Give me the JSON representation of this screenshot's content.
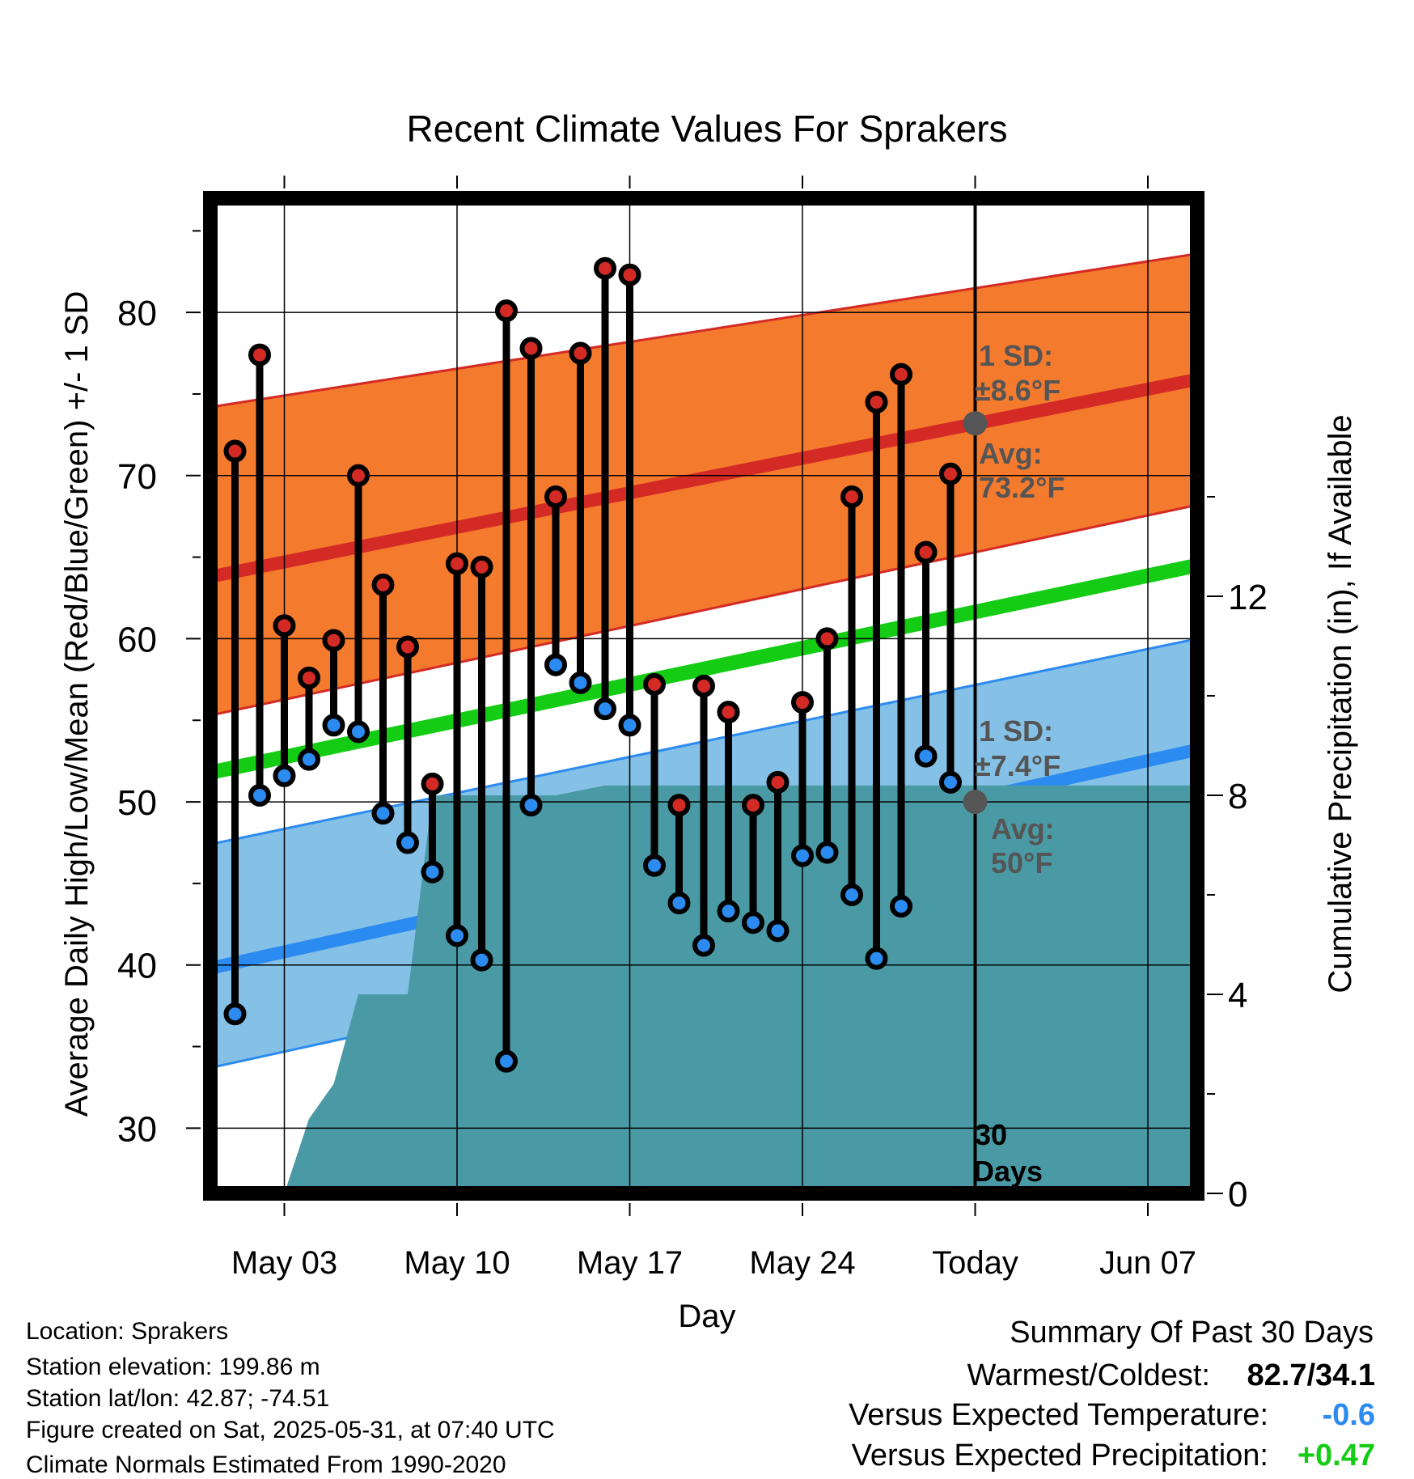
{
  "chart_data": {
    "type": "line",
    "title": "Recent Climate Values For Sprakers",
    "xlabel": "Day",
    "ylabel": "Average Daily High/Low/Mean (Red/Blue/Green) +/- 1 SD",
    "y2label": "Cumulative Precipitation (in), If Available",
    "ylim": [
      26,
      87
    ],
    "y2lim": [
      0,
      20
    ],
    "xlim": [
      -3.0,
      37.0
    ],
    "yticks": [
      "30",
      "40",
      "50",
      "60",
      "70",
      "80"
    ],
    "y2ticks": [
      "0",
      "4",
      "8",
      "12"
    ],
    "xticks": [
      {
        "day": 0,
        "label": "May 03"
      },
      {
        "day": 7,
        "label": "May 10"
      },
      {
        "day": 14,
        "label": "May 17"
      },
      {
        "day": 21,
        "label": "May 24"
      },
      {
        "day": 28,
        "label": "Today"
      },
      {
        "day": 35,
        "label": "Jun 07"
      }
    ],
    "grid": true,
    "days": [
      -2,
      -1,
      0,
      1,
      2,
      3,
      4,
      5,
      6,
      7,
      8,
      9,
      10,
      11,
      12,
      13,
      14,
      15,
      16,
      17,
      18,
      19,
      20,
      21,
      22,
      23,
      24,
      25,
      26,
      27
    ],
    "highs": [
      71.5,
      77.4,
      60.8,
      57.6,
      59.9,
      70.0,
      63.3,
      59.5,
      51.1,
      64.6,
      64.4,
      80.1,
      77.8,
      68.7,
      77.5,
      82.7,
      82.3,
      57.2,
      49.8,
      57.1,
      55.5,
      49.8,
      51.2,
      56.1,
      60.0,
      68.7,
      74.5,
      76.2,
      65.3,
      70.1
    ],
    "lows": [
      37.0,
      50.4,
      51.6,
      52.6,
      54.7,
      54.3,
      49.3,
      47.5,
      45.7,
      41.8,
      40.3,
      34.1,
      49.8,
      58.4,
      57.3,
      55.7,
      54.7,
      46.1,
      43.8,
      41.2,
      43.3,
      42.6,
      42.1,
      46.7,
      46.9,
      44.3,
      40.4,
      43.6,
      52.8,
      51.2
    ],
    "normals": {
      "days": [
        -3,
        37
      ],
      "high_avg": [
        63.8,
        75.9
      ],
      "high_upper": [
        74.2,
        83.6
      ],
      "high_lower": [
        55.3,
        68.2
      ],
      "low_avg": [
        39.8,
        53.2
      ],
      "low_upper": [
        47.4,
        60.0
      ],
      "low_lower": [
        33.7,
        46.9
      ],
      "mean_avg": [
        51.8,
        64.5
      ]
    },
    "precip": {
      "days": [
        0,
        1,
        2,
        3,
        5,
        6,
        7,
        11,
        13,
        14.5,
        18,
        20.5,
        21.5,
        26,
        37
      ],
      "values": [
        0,
        1.5,
        2.2,
        4.0,
        4.0,
        8.0,
        8.0,
        8.0,
        8.2,
        8.2,
        8.2,
        8.2,
        8.2,
        8.2,
        8.2
      ]
    },
    "annotations": {
      "today_marker": {
        "label_line1": "30",
        "label_line2": "Days"
      },
      "high": {
        "avg_value": 73.2,
        "sd_line": "1 SD:",
        "sd_value": "±8.6°F",
        "avg_line": "Avg:",
        "avg_text": "73.2°F"
      },
      "low": {
        "avg_value": 50,
        "sd_line": "1 SD:",
        "sd_value": "±7.4°F",
        "avg_line": "Avg:",
        "avg_text": "50°F"
      }
    },
    "colors": {
      "high_band": "#f47a2d",
      "high_line": "#d42a25",
      "low_band": "#85c1e6",
      "low_line": "#2c8bf0",
      "mean_line": "#14cc14",
      "precip": "#4a9aa5",
      "high_dot": "#d42a25",
      "low_dot": "#2c8bf0",
      "annotation": "#555555"
    }
  },
  "footer": {
    "location": "Location: Sprakers",
    "elevation": "Station elevation: 199.86 m",
    "latlon": "Station lat/lon: 42.87; -74.51",
    "created": "Figure created on Sat, 2025-05-31, at 07:40 UTC",
    "normals": "Climate Normals Estimated From 1990-2020"
  },
  "summary": {
    "title": "Summary Of Past 30 Days",
    "warm_cold_label": "Warmest/Coldest:",
    "warm_cold_value": "82.7/34.1",
    "temp_label": "Versus Expected Temperature:",
    "temp_value": "-0.6",
    "temp_color": "#2c8bf0",
    "precip_label": "Versus Expected Precipitation:",
    "precip_value": "+0.47",
    "precip_color": "#14cc14"
  }
}
